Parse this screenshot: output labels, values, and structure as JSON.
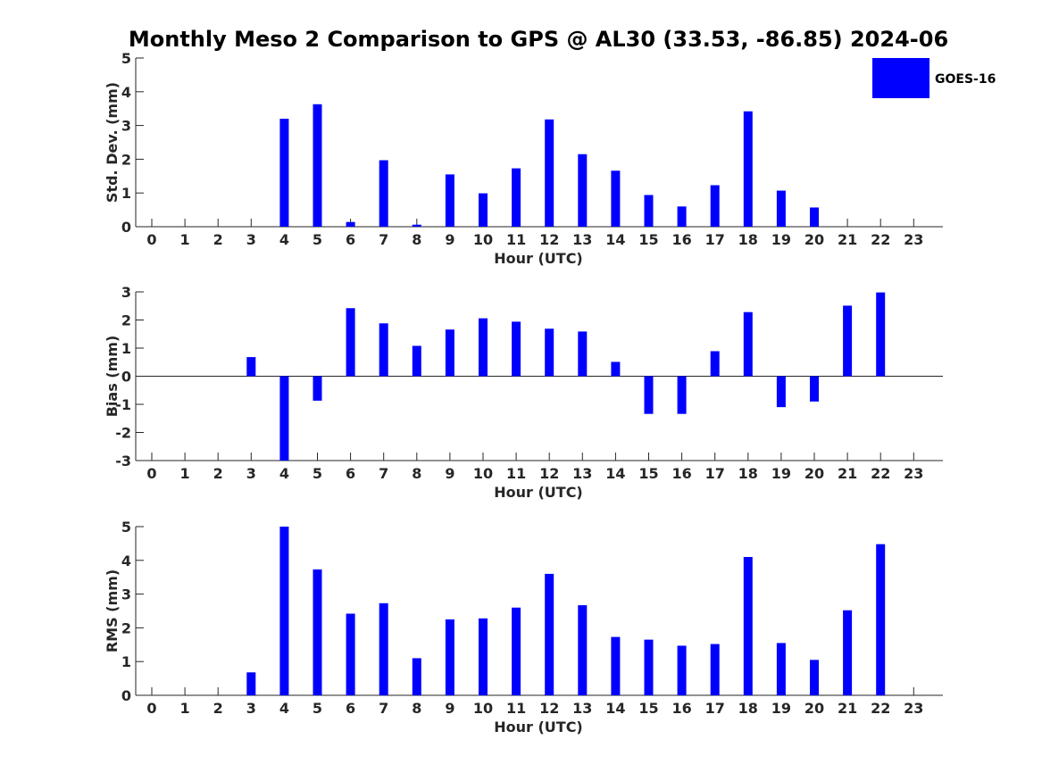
{
  "title": "Monthly Meso 2 Comparison to GPS @ AL30 (33.53, -86.85) 2024-06",
  "colors": {
    "bar": "#0000ff",
    "axis": "#262626"
  },
  "legend": {
    "label": "GOES-16",
    "placement": "top-right"
  },
  "chart_data": [
    {
      "type": "bar",
      "xlabel": "Hour (UTC)",
      "ylabel": "Std. Dev. (mm)",
      "ylim": [
        0,
        5
      ],
      "yticks": [
        0,
        1,
        2,
        3,
        4,
        5
      ],
      "categories": [
        "0",
        "1",
        "2",
        "3",
        "4",
        "5",
        "6",
        "7",
        "8",
        "9",
        "10",
        "11",
        "12",
        "13",
        "14",
        "15",
        "16",
        "17",
        "18",
        "19",
        "20",
        "21",
        "22",
        "23"
      ],
      "series": [
        {
          "name": "GOES-16",
          "values": [
            null,
            null,
            null,
            null,
            3.2,
            3.63,
            0.14,
            1.97,
            0.06,
            1.55,
            0.99,
            1.73,
            3.18,
            2.15,
            1.66,
            0.94,
            0.6,
            1.23,
            3.42,
            1.07,
            0.57,
            null,
            null,
            null
          ]
        }
      ]
    },
    {
      "type": "bar",
      "xlabel": "Hour (UTC)",
      "ylabel": "Bias (mm)",
      "ylim": [
        -3,
        3
      ],
      "yticks": [
        -3,
        -2,
        -1,
        0,
        1,
        2,
        3
      ],
      "categories": [
        "0",
        "1",
        "2",
        "3",
        "4",
        "5",
        "6",
        "7",
        "8",
        "9",
        "10",
        "11",
        "12",
        "13",
        "14",
        "15",
        "16",
        "17",
        "18",
        "19",
        "20",
        "21",
        "22",
        "23"
      ],
      "series": [
        {
          "name": "GOES-16",
          "values": [
            null,
            null,
            null,
            0.68,
            -3.0,
            -0.87,
            2.42,
            1.88,
            1.08,
            1.66,
            2.06,
            1.94,
            1.69,
            1.59,
            0.51,
            -1.34,
            -1.34,
            0.89,
            2.28,
            -1.1,
            -0.9,
            2.51,
            2.98,
            null
          ]
        }
      ]
    },
    {
      "type": "bar",
      "xlabel": "Hour (UTC)",
      "ylabel": "RMS (mm)",
      "ylim": [
        0,
        5
      ],
      "yticks": [
        0,
        1,
        2,
        3,
        4,
        5
      ],
      "categories": [
        "0",
        "1",
        "2",
        "3",
        "4",
        "5",
        "6",
        "7",
        "8",
        "9",
        "10",
        "11",
        "12",
        "13",
        "14",
        "15",
        "16",
        "17",
        "18",
        "19",
        "20",
        "21",
        "22",
        "23"
      ],
      "series": [
        {
          "name": "GOES-16",
          "values": [
            null,
            null,
            null,
            0.68,
            5.0,
            3.73,
            2.42,
            2.73,
            1.1,
            2.25,
            2.28,
            2.6,
            3.6,
            2.67,
            1.73,
            1.65,
            1.47,
            1.52,
            4.1,
            1.55,
            1.05,
            2.52,
            4.48,
            null
          ]
        }
      ]
    }
  ]
}
